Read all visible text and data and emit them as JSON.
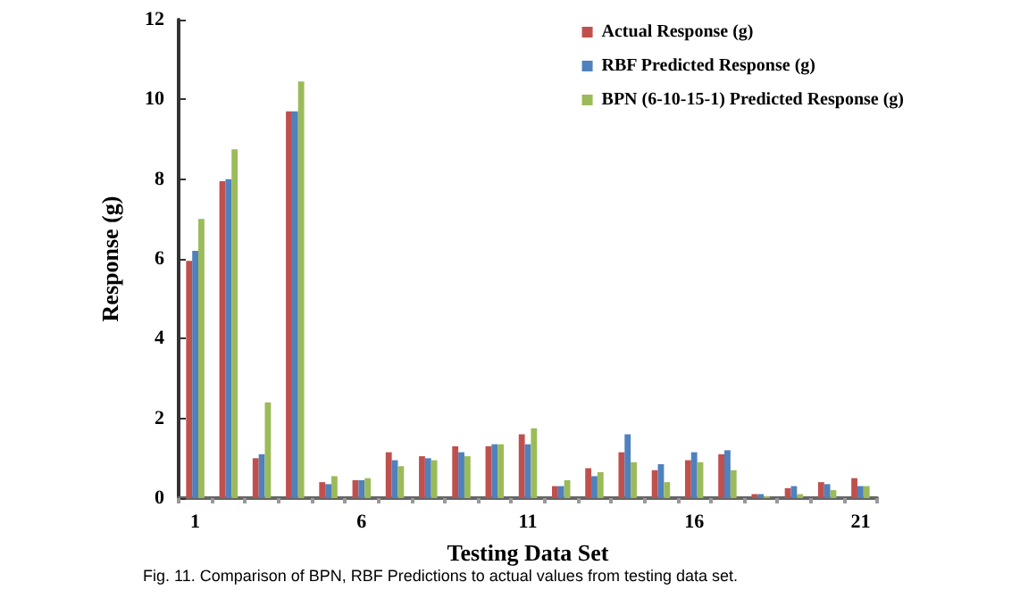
{
  "chart_data": {
    "type": "bar",
    "xlabel": "Testing Data Set",
    "ylabel": "Response (g)",
    "annotations": [
      "Fig. 11. Comparison of BPN, RBF Predictions to actual values from testing data set."
    ],
    "categories": [
      "1",
      null,
      null,
      null,
      null,
      "6",
      null,
      null,
      null,
      null,
      "11",
      null,
      null,
      null,
      null,
      "16",
      null,
      null,
      null,
      null,
      "21"
    ],
    "series": [
      {
        "name": "Actual Response (g)",
        "color": "#c0504d",
        "values": [
          5.95,
          7.95,
          1.0,
          9.7,
          0.4,
          0.45,
          1.15,
          1.05,
          1.3,
          1.3,
          1.6,
          0.3,
          0.75,
          1.15,
          0.7,
          0.95,
          1.1,
          0.1,
          0.25,
          0.4,
          0.5
        ]
      },
      {
        "name": "RBF Predicted Response (g)",
        "color": "#4f81bd",
        "values": [
          6.2,
          8.0,
          1.1,
          9.7,
          0.35,
          0.45,
          0.95,
          1.0,
          1.15,
          1.35,
          1.35,
          0.3,
          0.55,
          1.6,
          0.85,
          1.15,
          1.2,
          0.1,
          0.3,
          0.35,
          0.3
        ]
      },
      {
        "name": "BPN (6-10-15-1) Predicted Response (g)",
        "color": "#9bbb59",
        "values": [
          7.0,
          8.75,
          2.4,
          10.45,
          0.55,
          0.5,
          0.8,
          0.95,
          1.05,
          1.35,
          1.75,
          0.45,
          0.65,
          0.9,
          0.4,
          0.9,
          0.7,
          0.05,
          0.1,
          0.2,
          0.3
        ]
      }
    ],
    "ylim": [
      0,
      12
    ],
    "yticks": [
      0,
      2,
      4,
      6,
      8,
      10,
      12
    ],
    "grid": false,
    "legend": "top right"
  }
}
